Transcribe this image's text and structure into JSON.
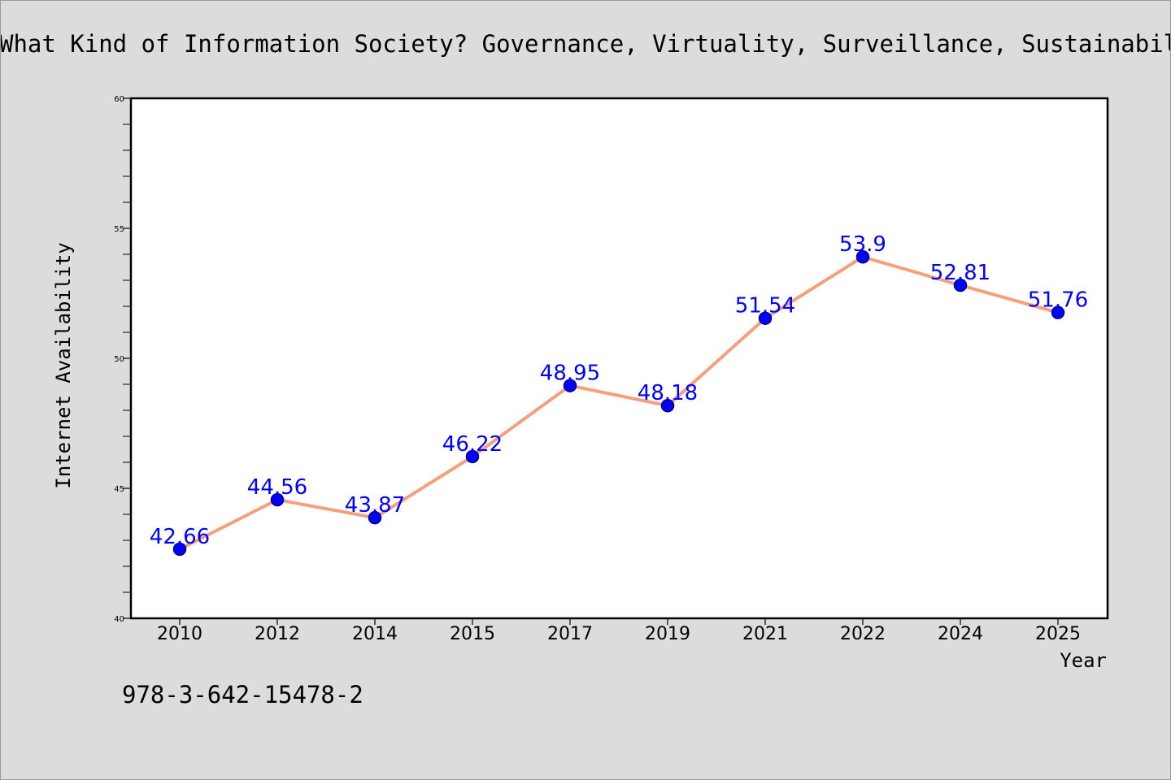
{
  "chart_data": {
    "type": "line",
    "title": "What Kind of Information Society? Governance, Virtuality, Surveillance, Sustainability, Resilience",
    "xlabel": "Year",
    "ylabel": "Internet Availability",
    "categories": [
      "2010",
      "2012",
      "2014",
      "2015",
      "2017",
      "2019",
      "2021",
      "2022",
      "2024",
      "2025"
    ],
    "series": [
      {
        "values": [
          42.66,
          44.56,
          43.87,
          46.22,
          48.95,
          48.18,
          51.54,
          53.9,
          52.81,
          51.76
        ],
        "labels": [
          "42.66",
          "44.56",
          "43.87",
          "46.22",
          "48.95",
          "48.18",
          "51.54",
          "53.9",
          "52.81",
          "51.76"
        ]
      }
    ],
    "ylim": [
      40,
      60
    ],
    "yticks": [
      "40",
      "45",
      "50",
      "55",
      "60"
    ],
    "grid": false,
    "legend": "none",
    "colors": {
      "line": "#f4a07a",
      "marker": "#0000ff",
      "marker_edge": "#00008b",
      "label": "#0000ff",
      "background": "#dcdcdc",
      "plot_background": "#ffffff"
    }
  },
  "annotation": "978-3-642-15478-2"
}
